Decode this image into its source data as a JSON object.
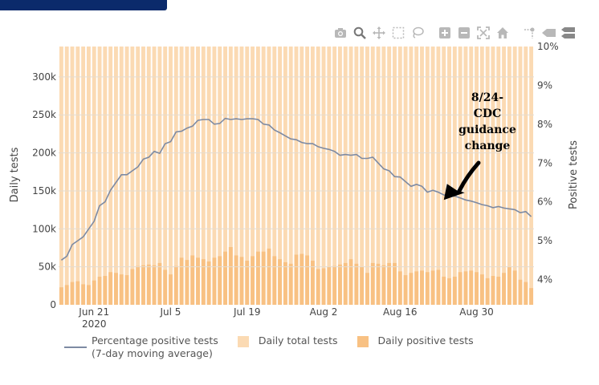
{
  "chart_data": {
    "type": "bar+line",
    "x_start": "2020-06-15",
    "x_ticks": [
      {
        "date": "2020-06-21",
        "label": "Jun 21",
        "sublabel": "2020"
      },
      {
        "date": "2020-07-05",
        "label": "Jul 5",
        "sublabel": ""
      },
      {
        "date": "2020-07-19",
        "label": "Jul 19",
        "sublabel": ""
      },
      {
        "date": "2020-08-02",
        "label": "Aug 2",
        "sublabel": ""
      },
      {
        "date": "2020-08-16",
        "label": "Aug 16",
        "sublabel": ""
      },
      {
        "date": "2020-08-30",
        "label": "Aug 30",
        "sublabel": ""
      }
    ],
    "y_left": {
      "title": "Daily tests",
      "range": [
        0,
        340000
      ],
      "ticks": [
        0,
        50000,
        100000,
        150000,
        200000,
        250000,
        300000
      ],
      "tick_labels": [
        "0",
        "50k",
        "100k",
        "150k",
        "200k",
        "250k",
        "300k"
      ]
    },
    "y_right": {
      "title": "Positive tests",
      "range": [
        3.35,
        10
      ],
      "ticks": [
        4,
        5,
        6,
        7,
        8,
        9,
        10
      ],
      "tick_labels": [
        "4%",
        "5%",
        "6%",
        "7%",
        "8%",
        "9%",
        "10%"
      ]
    },
    "series": [
      {
        "name": "Daily positive tests",
        "kind": "bar",
        "color": "#f8c183",
        "values": [
          23000,
          26000,
          30000,
          31000,
          27000,
          26000,
          32000,
          37000,
          38000,
          43000,
          42000,
          40000,
          39000,
          47000,
          51000,
          52000,
          53000,
          52000,
          55000,
          46000,
          40000,
          51000,
          62000,
          59000,
          65000,
          62000,
          60000,
          57000,
          62000,
          64000,
          70000,
          76000,
          65000,
          63000,
          58000,
          64000,
          70000,
          70000,
          74000,
          64000,
          60000,
          56000,
          54000,
          66000,
          67000,
          65000,
          58000,
          47000,
          48000,
          50000,
          51000,
          53000,
          55000,
          60000,
          54000,
          50000,
          42000,
          55000,
          54000,
          52000,
          55000,
          55000,
          44000,
          39000,
          42000,
          44000,
          45000,
          43000,
          45000,
          46000,
          37000,
          35000,
          37000,
          43000,
          44000,
          45000,
          43000,
          40000,
          35000,
          38000,
          37000,
          42000,
          50000,
          45000,
          33000,
          30000,
          22000
        ]
      },
      {
        "name": "Daily total tests",
        "kind": "bar",
        "color": "#fbdab3",
        "values": [
          340000
        ]
      },
      {
        "name": "Percentage positive tests",
        "kind": "line",
        "color": "#7d8aa3",
        "values": [
          4.5,
          4.6,
          4.9,
          5.0,
          5.1,
          5.3,
          5.5,
          5.9,
          6.0,
          6.3,
          6.5,
          6.7,
          6.7,
          6.8,
          6.9,
          7.1,
          7.15,
          7.3,
          7.25,
          7.5,
          7.55,
          7.8,
          7.82,
          7.9,
          7.95,
          8.1,
          8.12,
          8.12,
          8.0,
          8.02,
          8.15,
          8.12,
          8.14,
          8.12,
          8.14,
          8.14,
          8.12,
          8.0,
          7.98,
          7.85,
          7.78,
          7.7,
          7.62,
          7.6,
          7.53,
          7.5,
          7.5,
          7.42,
          7.38,
          7.35,
          7.3,
          7.2,
          7.22,
          7.2,
          7.22,
          7.12,
          7.12,
          7.15,
          7.0,
          6.85,
          6.8,
          6.65,
          6.64,
          6.52,
          6.4,
          6.45,
          6.4,
          6.25,
          6.3,
          6.25,
          6.18,
          6.15,
          6.15,
          6.1,
          6.05,
          6.02,
          5.98,
          5.93,
          5.9,
          5.85,
          5.88,
          5.84,
          5.82,
          5.8,
          5.72,
          5.75,
          5.62
        ]
      }
    ],
    "annotation": {
      "lines": [
        "8/24-",
        "CDC",
        "guidance",
        "change"
      ],
      "date": "2020-08-24",
      "percent": 6.05
    },
    "legend": {
      "line_label_1": "Percentage positive tests",
      "line_label_2": "(7-day moving average)",
      "total_label": "Daily total tests",
      "positive_label": "Daily positive tests"
    },
    "grid": true
  },
  "modebar": {
    "icons": [
      "camera-icon",
      "zoom-icon",
      "pan-icon",
      "box-select-icon",
      "lasso-icon",
      "zoom-in-icon",
      "zoom-out-icon",
      "autoscale-icon",
      "home-icon",
      "spike-lines-icon",
      "hover-closest-icon",
      "hover-compare-icon"
    ],
    "color": "#b8b8b8"
  }
}
